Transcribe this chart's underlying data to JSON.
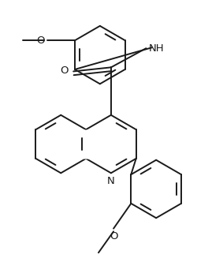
{
  "background_color": "#ffffff",
  "line_color": "#1a1a1a",
  "line_width": 1.4,
  "dbo": 0.06,
  "shrink": 0.12,
  "font_size": 8.5,
  "fig_width": 2.5,
  "fig_height": 3.32,
  "dpi": 100,
  "xlim": [
    -0.3,
    2.1
  ],
  "ylim": [
    -0.3,
    3.3
  ]
}
